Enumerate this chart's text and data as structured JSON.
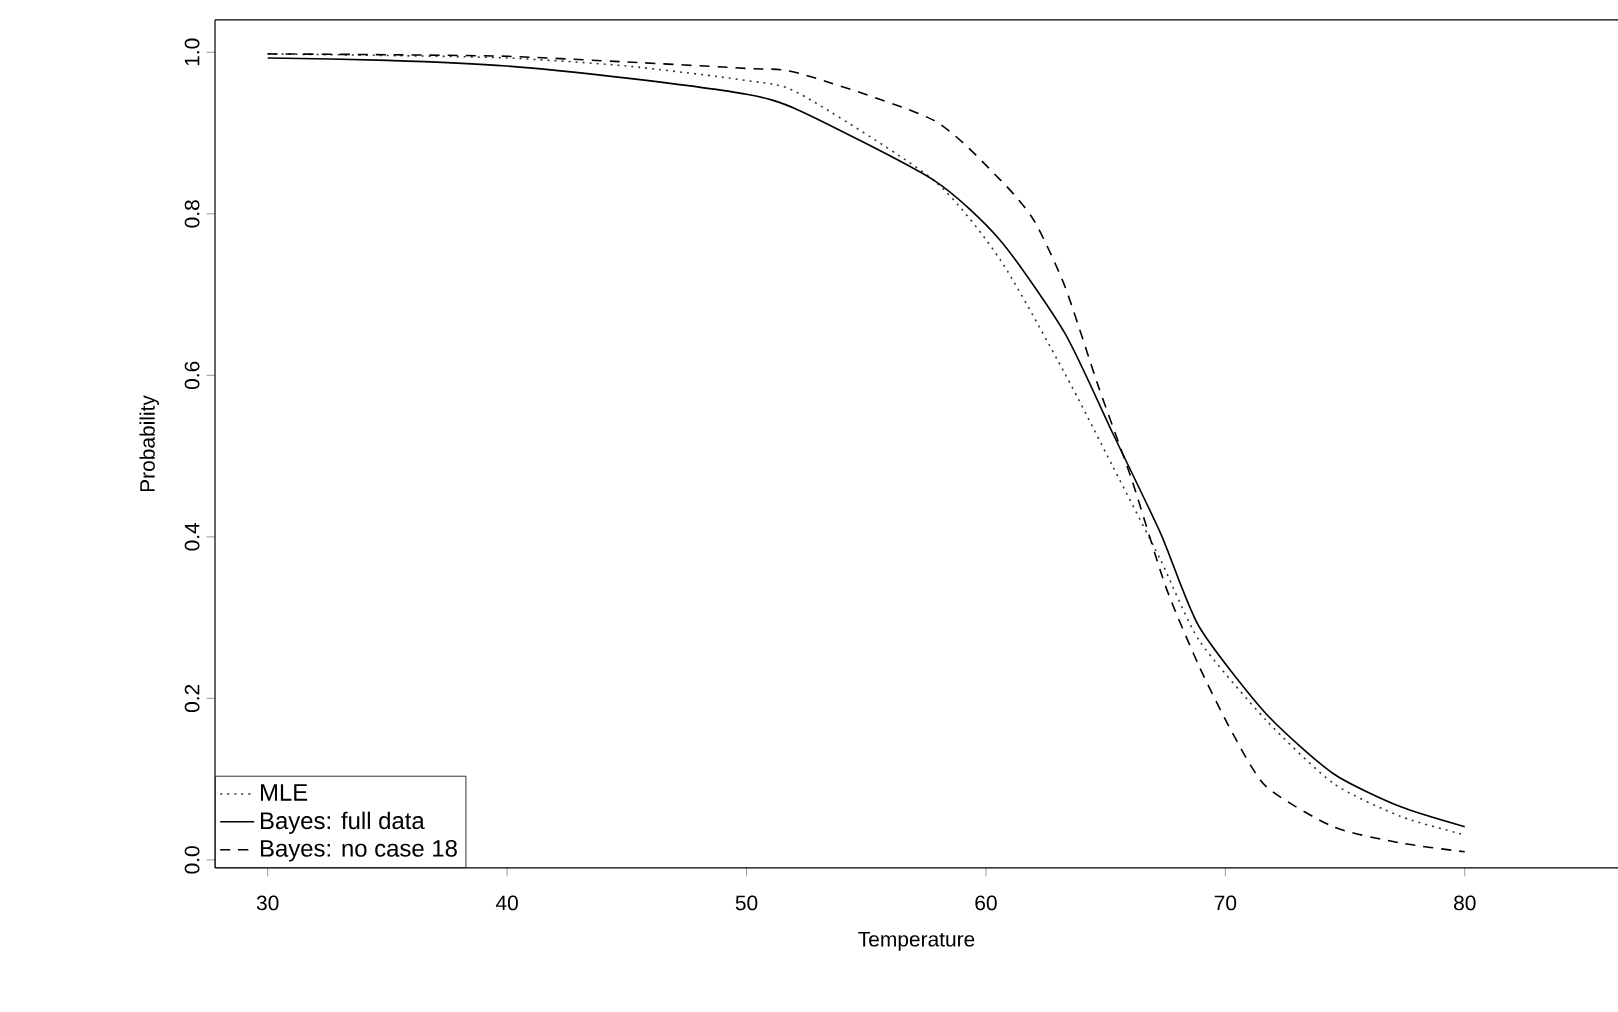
{
  "chart_data": {
    "type": "line",
    "xlabel": "Temperature",
    "ylabel": "Probability",
    "xlim": [
      27.8,
      86.4
    ],
    "ylim": [
      -0.01,
      1.04
    ],
    "xticks": [
      30,
      40,
      50,
      60,
      70,
      80
    ],
    "yticks": [
      {
        "value": 0,
        "label": "0.0"
      },
      {
        "value": 0.2,
        "label": "0.2"
      },
      {
        "value": 0.4,
        "label": "0.4"
      },
      {
        "value": 0.6,
        "label": "0.6"
      },
      {
        "value": 0.8,
        "label": "0.8"
      },
      {
        "value": 1,
        "label": "1.0"
      }
    ],
    "grid": false,
    "legend": "bottom left",
    "marker": "none",
    "series": [
      {
        "name": "MLE",
        "color": "#333333",
        "line_style": "dotted",
        "x": [
          30,
          35,
          40,
          45,
          50,
          52.2,
          57.8,
          60.6,
          63.3,
          65.3,
          67.3,
          68.9,
          71.7,
          74.5,
          77.3,
          80
        ],
        "values": [
          0.998,
          0.996,
          0.993,
          0.983,
          0.965,
          0.949,
          0.842,
          0.743,
          0.602,
          0.487,
          0.371,
          0.272,
          0.173,
          0.095,
          0.054,
          0.031
        ]
      },
      {
        "name": "Bayes: full data",
        "color": "#000000",
        "line_style": "solid",
        "x": [
          30,
          35,
          40,
          45,
          50,
          52.2,
          57.8,
          60.6,
          63.3,
          65.3,
          67.3,
          68.9,
          71.7,
          74.5,
          77.3,
          80
        ],
        "values": [
          0.993,
          0.99,
          0.983,
          0.968,
          0.948,
          0.928,
          0.842,
          0.767,
          0.652,
          0.528,
          0.404,
          0.289,
          0.181,
          0.107,
          0.066,
          0.041
        ]
      },
      {
        "name": "Bayes: no case 18",
        "color": "#000000",
        "line_style": "dashed",
        "x": [
          30,
          35,
          40,
          45,
          50,
          52.2,
          57.8,
          60.6,
          62.0,
          63.3,
          64.7,
          66.1,
          67.5,
          68.9,
          70.3,
          71.7,
          74.5,
          77.3,
          80
        ],
        "values": [
          0.998,
          0.997,
          0.995,
          0.988,
          0.98,
          0.974,
          0.916,
          0.842,
          0.792,
          0.71,
          0.586,
          0.47,
          0.339,
          0.24,
          0.157,
          0.091,
          0.041,
          0.021,
          0.01
        ]
      }
    ]
  }
}
